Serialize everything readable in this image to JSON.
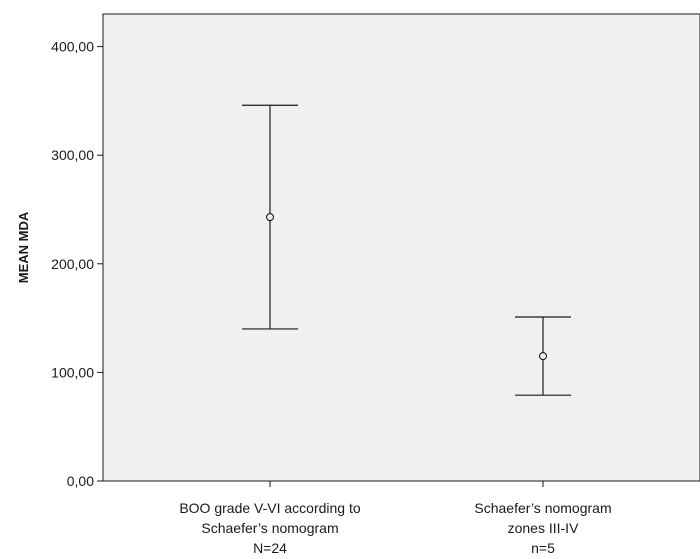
{
  "chart_data": {
    "type": "errorbar",
    "title": "",
    "xlabel": "",
    "ylabel": "MEAN MDA",
    "ylim": [
      0,
      430
    ],
    "y_ticks": [
      0,
      100,
      200,
      300,
      400
    ],
    "y_tick_labels": [
      "0,00",
      "100,00",
      "200,00",
      "300,00",
      "400,00"
    ],
    "grid": false,
    "plot_background": "#f0f0f0",
    "categories": [
      {
        "lines": [
          "BOO grade V-VI according to",
          "Schaefer’s nomogram",
          "N=24"
        ]
      },
      {
        "lines": [
          "Schaefer’s nomogram",
          "zones III-IV",
          "n=5"
        ]
      }
    ],
    "series": [
      {
        "values": [
          {
            "mean": 243,
            "lower": 140,
            "upper": 346
          },
          {
            "mean": 115,
            "lower": 79,
            "upper": 151
          }
        ]
      }
    ]
  }
}
